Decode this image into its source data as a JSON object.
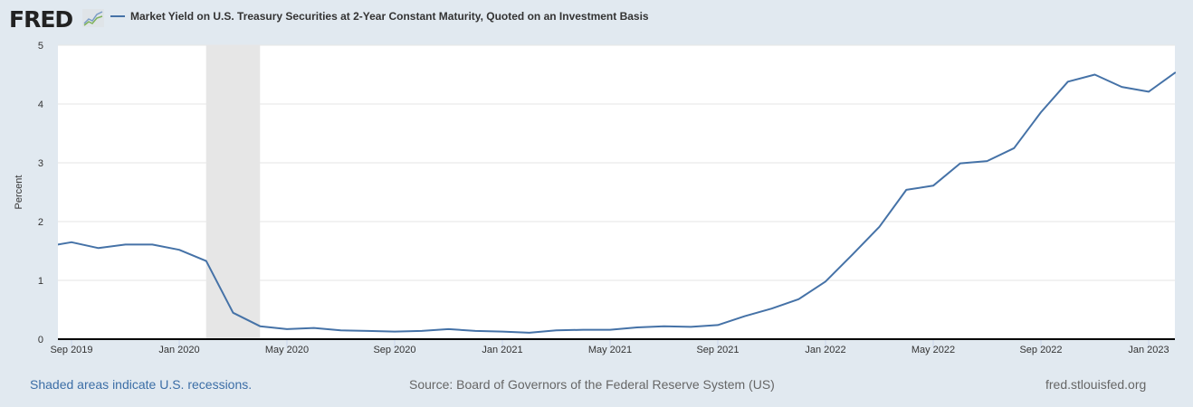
{
  "logo": "FRED",
  "colors": {
    "series": "#4572a7",
    "recession": "#e6e6e6",
    "background": "#e1e9f0"
  },
  "footer": {
    "recession_note": "Shaded areas indicate U.S. recessions.",
    "source": "Source: Board of Governors of the Federal Reserve System (US)",
    "site": "fred.stlouisfed.org"
  },
  "chart_data": {
    "type": "line",
    "ylabel": "Percent",
    "ylim": [
      0,
      5
    ],
    "yticks": [
      0,
      1,
      2,
      3,
      4,
      5
    ],
    "xticks": [
      "Sep 2019",
      "Jan 2020",
      "May 2020",
      "Sep 2020",
      "Jan 2021",
      "May 2021",
      "Sep 2021",
      "Jan 2022",
      "May 2022",
      "Sep 2022",
      "Jan 2023"
    ],
    "grid": true,
    "legend": "top-left",
    "recessions": [
      {
        "start": "2020-02",
        "end": "2020-04"
      }
    ],
    "series": [
      {
        "name": "Market Yield on U.S. Treasury Securities at 2-Year Constant Maturity, Quoted on an Investment Basis",
        "x": [
          "2019-08",
          "2019-09",
          "2019-10",
          "2019-11",
          "2019-12",
          "2020-01",
          "2020-02",
          "2020-03",
          "2020-04",
          "2020-05",
          "2020-06",
          "2020-07",
          "2020-08",
          "2020-09",
          "2020-10",
          "2020-11",
          "2020-12",
          "2021-01",
          "2021-02",
          "2021-03",
          "2021-04",
          "2021-05",
          "2021-06",
          "2021-07",
          "2021-08",
          "2021-09",
          "2021-10",
          "2021-11",
          "2021-12",
          "2022-01",
          "2022-02",
          "2022-03",
          "2022-04",
          "2022-05",
          "2022-06",
          "2022-07",
          "2022-08",
          "2022-09",
          "2022-10",
          "2022-11",
          "2022-12",
          "2023-01",
          "2023-02"
        ],
        "values": [
          1.57,
          1.65,
          1.55,
          1.61,
          1.61,
          1.52,
          1.33,
          0.45,
          0.22,
          0.17,
          0.19,
          0.15,
          0.14,
          0.13,
          0.14,
          0.17,
          0.14,
          0.13,
          0.11,
          0.15,
          0.16,
          0.16,
          0.2,
          0.22,
          0.21,
          0.24,
          0.39,
          0.52,
          0.68,
          0.98,
          1.44,
          1.91,
          2.54,
          2.61,
          2.99,
          3.03,
          3.25,
          3.86,
          4.38,
          4.5,
          4.29,
          4.21,
          4.54
        ]
      }
    ]
  }
}
